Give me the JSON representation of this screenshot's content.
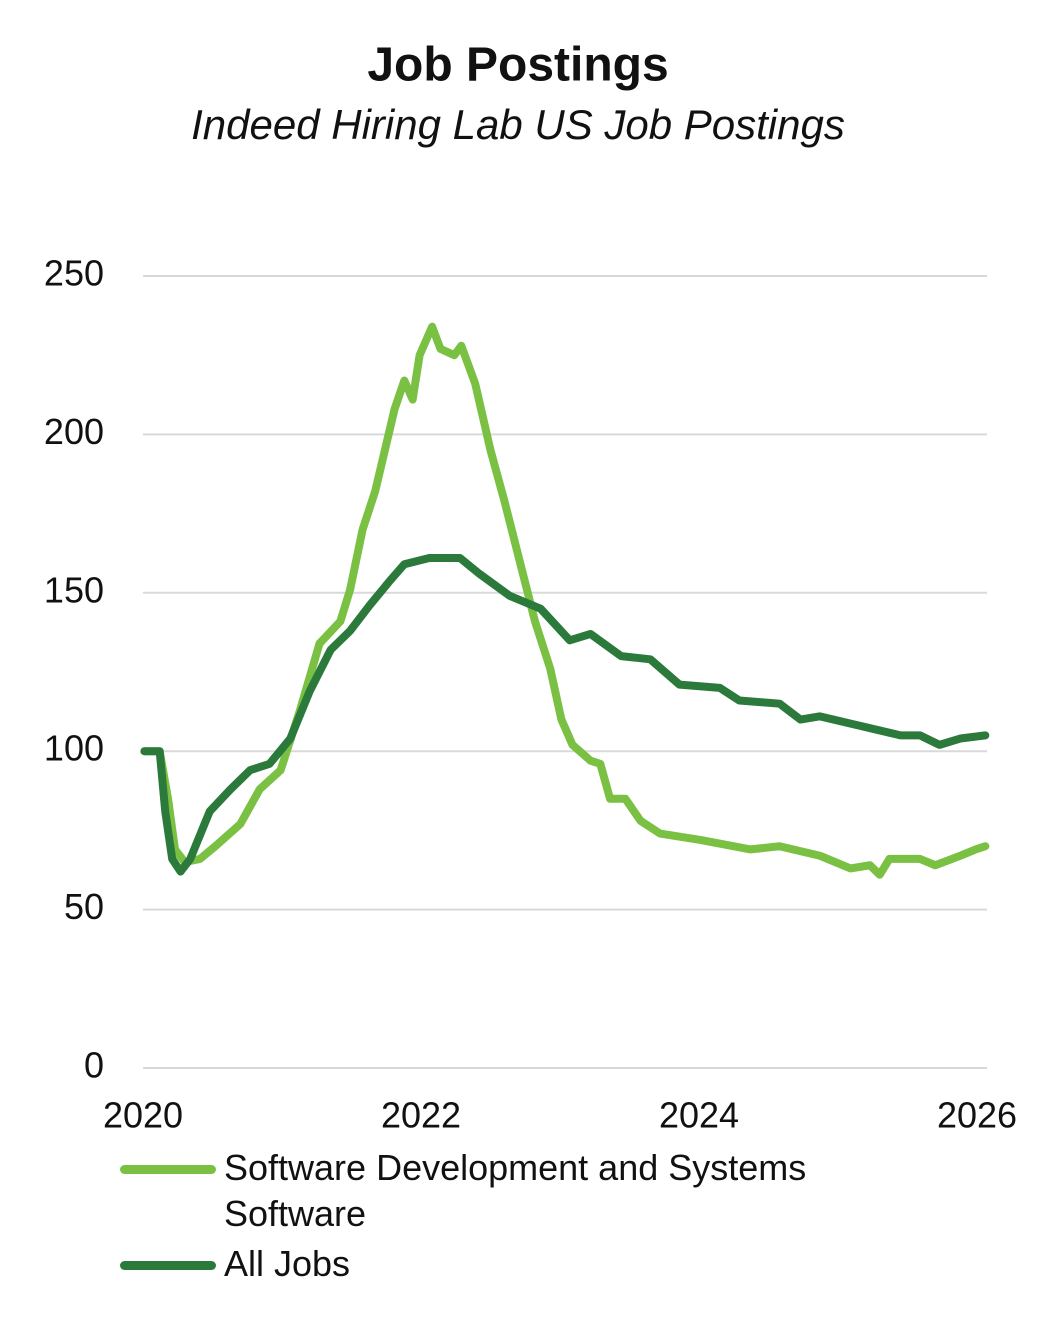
{
  "chart_data": {
    "type": "line",
    "title": "Job Postings",
    "subtitle": "Indeed Hiring Lab US Job Postings",
    "xlim": [
      2020,
      2026
    ],
    "xticks": [
      2020,
      2022,
      2024,
      2026
    ],
    "ylim": [
      0,
      250
    ],
    "yticks": [
      0,
      50,
      100,
      150,
      200,
      250
    ],
    "grid": true,
    "series": [
      {
        "name": "Software Development and Systems Software",
        "color": "#7ac143",
        "x": [
          2020.01,
          2020.12,
          2020.18,
          2020.23,
          2020.3,
          2020.41,
          2020.52,
          2020.7,
          2020.84,
          2020.99,
          2021.13,
          2021.27,
          2021.42,
          2021.49,
          2021.58,
          2021.67,
          2021.74,
          2021.81,
          2021.88,
          2021.94,
          2021.99,
          2022.08,
          2022.14,
          2022.24,
          2022.29,
          2022.39,
          2022.5,
          2022.6,
          2022.71,
          2022.82,
          2022.93,
          2023.01,
          2023.09,
          2023.22,
          2023.29,
          2023.36,
          2023.47,
          2023.58,
          2023.72,
          2024.01,
          2024.37,
          2024.58,
          2024.87,
          2025.09,
          2025.23,
          2025.3,
          2025.37,
          2025.59,
          2025.7,
          2025.88,
          2025.99,
          2026.06
        ],
        "values": [
          100,
          100,
          85,
          69,
          65,
          66,
          70,
          77,
          88,
          94,
          113,
          134,
          141,
          151,
          170,
          182,
          195,
          208,
          217,
          211,
          225,
          234,
          227,
          225,
          228,
          216,
          195,
          179,
          160,
          141,
          126,
          110,
          102,
          97,
          96,
          85,
          85,
          78,
          74,
          72,
          69,
          70,
          67,
          63,
          64,
          61,
          66,
          66,
          64,
          67,
          69,
          70
        ]
      },
      {
        "name": "All Jobs",
        "color": "#2b7a3b",
        "x": [
          2020.01,
          2020.12,
          2020.16,
          2020.21,
          2020.27,
          2020.34,
          2020.48,
          2020.63,
          2020.77,
          2020.91,
          2021.06,
          2021.2,
          2021.35,
          2021.49,
          2021.63,
          2021.78,
          2021.88,
          2022.06,
          2022.28,
          2022.42,
          2022.64,
          2022.86,
          2023.07,
          2023.22,
          2023.44,
          2023.65,
          2023.86,
          2024.15,
          2024.29,
          2024.58,
          2024.73,
          2024.87,
          2025.16,
          2025.45,
          2025.59,
          2025.73,
          2025.88,
          2026.06
        ],
        "values": [
          100,
          100,
          81,
          66,
          62,
          66,
          81,
          88,
          94,
          96,
          104,
          119,
          132,
          138,
          146,
          154,
          159,
          161,
          161,
          156,
          149,
          145,
          135,
          137,
          130,
          129,
          121,
          120,
          116,
          115,
          110,
          111,
          108,
          105,
          105,
          102,
          104,
          105
        ]
      }
    ]
  }
}
